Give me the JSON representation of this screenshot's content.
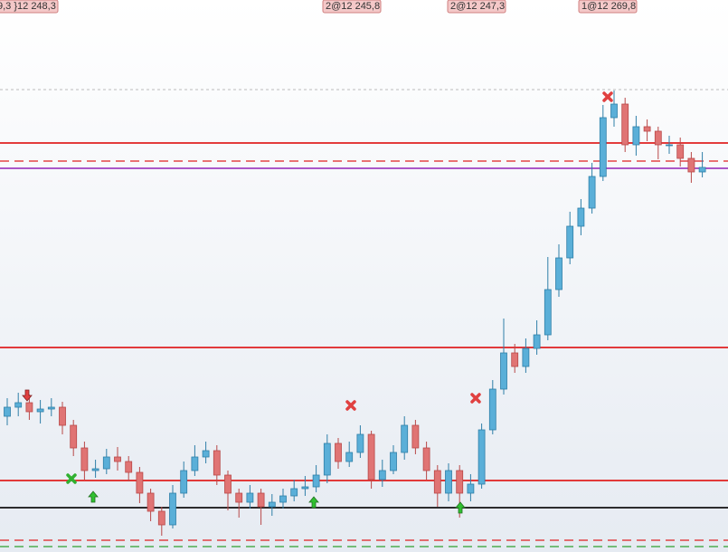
{
  "chart_data": {
    "type": "candlestick",
    "annotations": [
      "9,3 }12 248,3",
      "2@12 245,8",
      "2@12 247,3",
      "1@12 269,8"
    ],
    "open": [
      252.0,
      252.5,
      252.75,
      252.25,
      252.4,
      252.5,
      251.5,
      250.25,
      249,
      249.1,
      249.75,
      249.5,
      248.9,
      247.75,
      246.75,
      246,
      247.75,
      249,
      249.75,
      250.1,
      248.75,
      247.75,
      247.25,
      247.75,
      247,
      247.25,
      247.6,
      248,
      248.1,
      248.75,
      250.5,
      249.5,
      250,
      251,
      248.5,
      249,
      250,
      251.5,
      250.25,
      249,
      247.75,
      249,
      247.75,
      248.25,
      251.25,
      253.5,
      255.5,
      254.75,
      255.75,
      256.5,
      259,
      260.75,
      262.5,
      263.5,
      265.25,
      268.5,
      269.25,
      267,
      268,
      267.75,
      267,
      267,
      266.25,
      265.5
    ],
    "high": [
      253.0,
      253.3,
      253.2,
      252.9,
      253.0,
      252.8,
      251.8,
      250.6,
      249.6,
      250.2,
      250.3,
      249.8,
      249.2,
      248.0,
      247.0,
      248.2,
      249.5,
      250.4,
      250.6,
      250.4,
      249.0,
      248.0,
      248.2,
      248.0,
      247.7,
      248.0,
      248.5,
      248.7,
      249.3,
      251.0,
      250.8,
      250.6,
      251.5,
      251.2,
      249.6,
      250.4,
      252.0,
      251.8,
      250.6,
      249.3,
      249.4,
      249.3,
      248.8,
      251.6,
      254.0,
      257.4,
      256.0,
      256.3,
      257.3,
      260.8,
      261.5,
      263.3,
      264.0,
      266.0,
      269.2,
      270.0,
      269.6,
      268.6,
      268.4,
      268.0,
      267.5,
      267.4,
      266.6,
      266.6
    ],
    "low": [
      251.5,
      252.0,
      251.8,
      251.6,
      252.0,
      251.0,
      249.8,
      248.5,
      248.6,
      248.8,
      249.0,
      248.4,
      247.2,
      246.2,
      245.4,
      245.8,
      247.5,
      248.7,
      249.4,
      248.2,
      246.8,
      246.4,
      246.9,
      246.0,
      246.5,
      246.9,
      247.3,
      247.6,
      247.8,
      248.3,
      249.1,
      249.2,
      249.7,
      248.0,
      248.1,
      248.8,
      249.6,
      249.9,
      248.5,
      247.0,
      247.3,
      246.4,
      247.3,
      248.0,
      251.0,
      253.2,
      254.4,
      254.4,
      255.4,
      256.2,
      258.6,
      260.4,
      262.0,
      263.2,
      265.0,
      268.0,
      266.6,
      266.4,
      267.2,
      266.2,
      266.5,
      265.8,
      264.9,
      265.2
    ],
    "close": [
      252.5,
      252.75,
      252.25,
      252.4,
      252.5,
      251.5,
      250.25,
      249,
      249.1,
      249.75,
      249.5,
      248.9,
      247.75,
      246.75,
      246,
      247.75,
      249,
      249.75,
      250.1,
      248.75,
      247.75,
      247.25,
      247.75,
      247,
      247.25,
      247.6,
      248,
      248.1,
      248.75,
      250.5,
      249.5,
      250,
      251,
      248.5,
      249,
      250,
      251.5,
      250.25,
      249,
      247.75,
      249,
      247.75,
      248.25,
      251.25,
      253.5,
      255.5,
      254.75,
      255.75,
      256.5,
      259,
      260.75,
      262.5,
      263.5,
      265.25,
      268.5,
      269.25,
      267,
      268,
      267.75,
      267,
      267,
      266.25,
      265.5,
      265.75
    ],
    "up_color": "#5aafd8",
    "down_color": "#e07474",
    "ylim": [
      244.5,
      275
    ],
    "levels": [
      {
        "value": 270.05,
        "color": "#c8c8c8",
        "style": "dotted"
      },
      {
        "value": 267.1,
        "color": "#e02020",
        "style": "solid"
      },
      {
        "value": 266.1,
        "color": "#e02020",
        "style": "dashed"
      },
      {
        "value": 265.7,
        "color": "#a040c0",
        "style": "solid"
      },
      {
        "value": 255.8,
        "color": "#e02020",
        "style": "solid"
      },
      {
        "value": 248.45,
        "color": "#e02020",
        "style": "solid"
      },
      {
        "value": 246.95,
        "color": "#111111",
        "style": "solid"
      },
      {
        "value": 245.15,
        "color": "#e02020",
        "style": "dashed"
      },
      {
        "value": 244.8,
        "color": "#30a030",
        "style": "dashed"
      }
    ]
  }
}
